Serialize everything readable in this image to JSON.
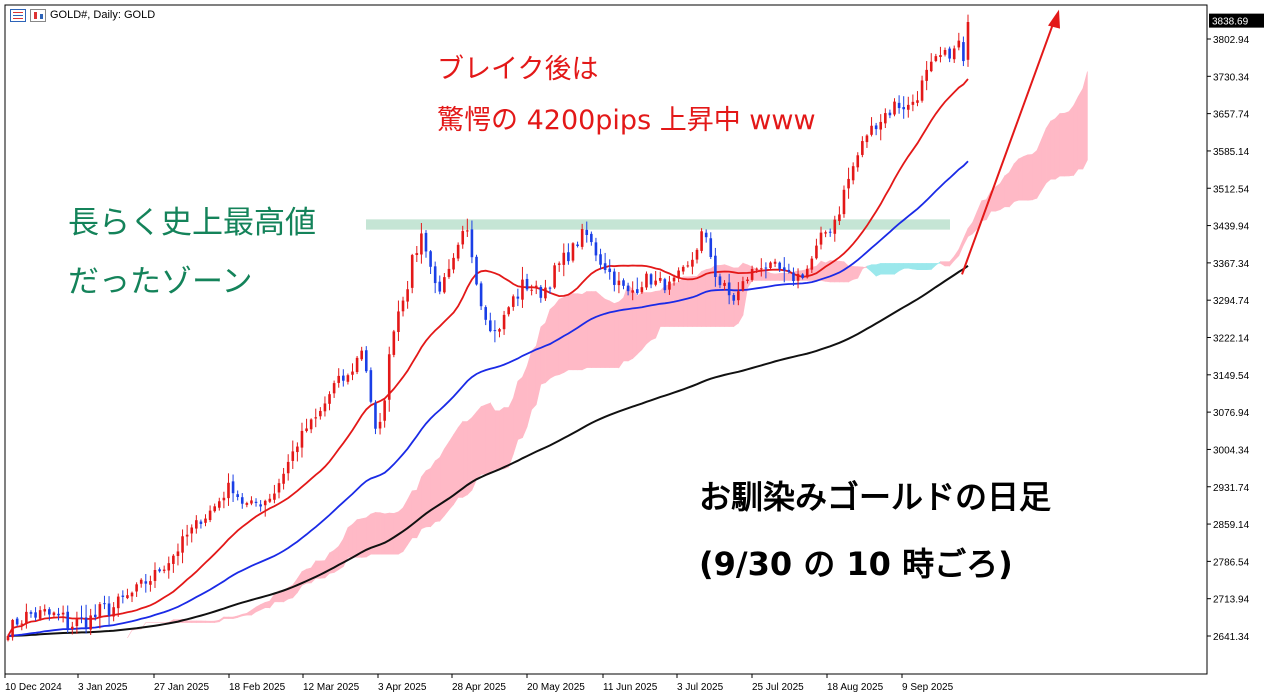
{
  "header": {
    "symbol_label": "GOLD#, Daily: GOLD"
  },
  "annotations": {
    "red_line1": "ブレイク後は",
    "red_line2": "驚愕の 4200pips 上昇中 www",
    "green_line1": "長らく史上最高値",
    "green_line2": "だったゾーン",
    "black_line1": "お馴染みゴールドの日足",
    "black_line2": "(9/30 の 10 時ごろ)"
  },
  "chart_data": {
    "type": "candlestick",
    "title": "GOLD#, Daily: GOLD",
    "ylim": [
      2580,
      3860
    ],
    "y_ticks": [
      2641.34,
      2713.94,
      2786.54,
      2859.14,
      2931.74,
      3004.34,
      3076.94,
      3149.54,
      3222.14,
      3294.74,
      3367.34,
      3439.94,
      3512.54,
      3585.14,
      3657.74,
      3730.34,
      3802.94
    ],
    "y_tick_labels": [
      "2641.34",
      "2713.94",
      "2786.54",
      "2859.14",
      "2931.74",
      "3004.34",
      "3076.94",
      "3149.54",
      "3222.14",
      "3294.74",
      "3367.34",
      "3439.94",
      "3512.54",
      "3585.14",
      "3657.74",
      "3730.34",
      "3802.94"
    ],
    "current_price": "3838.69",
    "x_ticks": [
      "10 Dec 2024",
      "3 Jan 2025",
      "27 Jan 2025",
      "18 Feb 2025",
      "12 Mar 2025",
      "3 Apr 2025",
      "28 Apr 2025",
      "20 May 2025",
      "11 Jun 2025",
      "3 Jul 2025",
      "25 Jul 2025",
      "18 Aug 2025",
      "9 Sep 2025"
    ],
    "trend_path": [
      [
        2660,
        2649
      ],
      [
        2695,
        2667
      ],
      [
        2695,
        2672
      ],
      [
        2699,
        2656
      ],
      [
        2685,
        2645
      ],
      [
        2680,
        2660
      ],
      [
        2700,
        2661
      ],
      [
        2710,
        2684
      ],
      [
        2720,
        2710
      ],
      [
        2745,
        2730
      ],
      [
        2770,
        2758
      ],
      [
        2800,
        2790
      ],
      [
        2840,
        2825
      ],
      [
        2870,
        2865
      ],
      [
        2900,
        2890
      ],
      [
        2940,
        2932
      ],
      [
        2890,
        2900
      ],
      [
        2905,
        2895
      ],
      [
        2930,
        2915
      ],
      [
        2980,
        2990
      ],
      [
        3040,
        3043
      ],
      [
        3060,
        3075
      ],
      [
        3120,
        3138
      ],
      [
        3140,
        3148
      ],
      [
        3200,
        3215
      ],
      [
        3010,
        2990
      ],
      [
        3245,
        3235
      ],
      [
        3320,
        3355
      ],
      [
        3420,
        3435
      ],
      [
        3320,
        3300
      ],
      [
        3350,
        3360
      ],
      [
        3430,
        3445
      ],
      [
        3290,
        3280
      ],
      [
        3240,
        3220
      ],
      [
        3280,
        3300
      ],
      [
        3310,
        3345
      ],
      [
        3320,
        3295
      ],
      [
        3330,
        3365
      ],
      [
        3380,
        3395
      ],
      [
        3420,
        3435
      ],
      [
        3385,
        3365
      ],
      [
        3330,
        3345
      ],
      [
        3295,
        3310
      ],
      [
        3330,
        3355
      ],
      [
        3340,
        3305
      ],
      [
        3300,
        3335
      ],
      [
        3340,
        3360
      ],
      [
        3430,
        3435
      ],
      [
        3350,
        3320
      ],
      [
        3300,
        3280
      ],
      [
        3330,
        3350
      ],
      [
        3360,
        3375
      ],
      [
        3360,
        3350
      ],
      [
        3330,
        3340
      ],
      [
        3345,
        3360
      ],
      [
        3400,
        3420
      ],
      [
        3440,
        3480
      ],
      [
        3520,
        3560
      ],
      [
        3620,
        3610
      ],
      [
        3640,
        3660
      ],
      [
        3660,
        3690
      ],
      [
        3680,
        3660
      ],
      [
        3700,
        3740
      ],
      [
        3760,
        3770
      ],
      [
        3775,
        3780
      ],
      [
        3835,
        3838.69
      ]
    ],
    "highlight_zone": [
      3432,
      3452
    ],
    "arrow": {
      "from_date": "after 9 Sep 2025",
      "direction": "up"
    },
    "indicators": [
      "short moving average (red)",
      "medium moving average (blue)",
      "long moving average (black)",
      "ichimoku cloud"
    ],
    "colors": {
      "bull_candle": "#e31818",
      "bear_candle": "#1a3fe6",
      "ma_short": "#e31818",
      "ma_medium": "#1a2ae6",
      "ma_long": "#111111",
      "cloud_bull": "#ffb9c6",
      "cloud_bear": "#9be8ec",
      "zone": "#c5e5d5",
      "arrow": "#e31818"
    }
  }
}
